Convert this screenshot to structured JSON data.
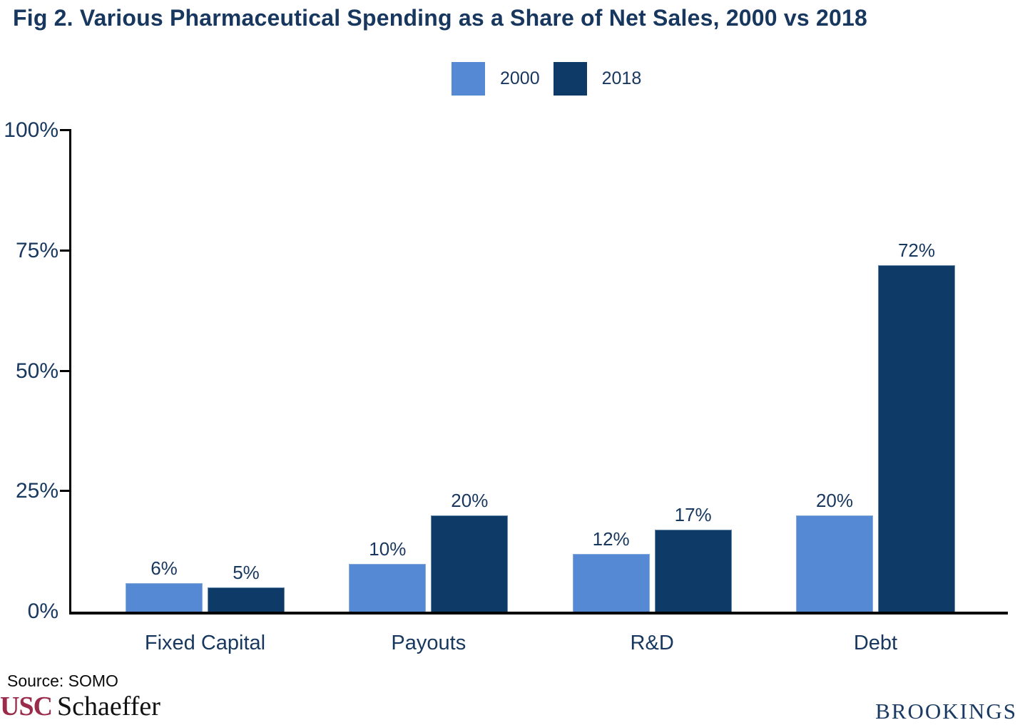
{
  "figure": {
    "title": "Fig 2. Various Pharmaceutical Spending as a Share of Net Sales, 2000 vs 2018",
    "source_note": "Source: SOMO",
    "logo_left_primary": "USC",
    "logo_left_secondary": "Schaeffer",
    "logo_right": "BROOKINGS"
  },
  "legend": {
    "position": "top-center",
    "items": [
      {
        "label": "2000",
        "color": "#5589D3"
      },
      {
        "label": "2018",
        "color": "#0D3A66"
      }
    ]
  },
  "chart_data": {
    "type": "bar",
    "title": "Fig 2. Various Pharmaceutical Spending as a Share of Net Sales, 2000 vs 2018",
    "categories": [
      "Fixed Capital",
      "Payouts",
      "R&D",
      "Debt"
    ],
    "series": [
      {
        "name": "2000",
        "color": "#5589D3",
        "values": [
          6,
          10,
          12,
          20
        ]
      },
      {
        "name": "2018",
        "color": "#0D3A66",
        "values": [
          5,
          20,
          17,
          72
        ]
      }
    ],
    "value_suffix": "%",
    "xlabel": "",
    "ylabel": "",
    "ylim": [
      0,
      100
    ],
    "yticks": [
      {
        "label": "0%",
        "value": 0
      },
      {
        "label": "25%",
        "value": 25
      },
      {
        "label": "50%",
        "value": 50
      },
      {
        "label": "75%",
        "value": 75
      },
      {
        "label": "100%",
        "value": 100
      }
    ],
    "grid": false,
    "legend_position": "top-center"
  },
  "colors": {
    "bar_2000": "#5589D3",
    "bar_2018": "#0D3A66",
    "chart_text": "#17375E",
    "axis_line": "#000000",
    "usc_cardinal": "#9A2B4A",
    "brookings_navy": "#1B3A63",
    "background": "#FFFFFF"
  }
}
